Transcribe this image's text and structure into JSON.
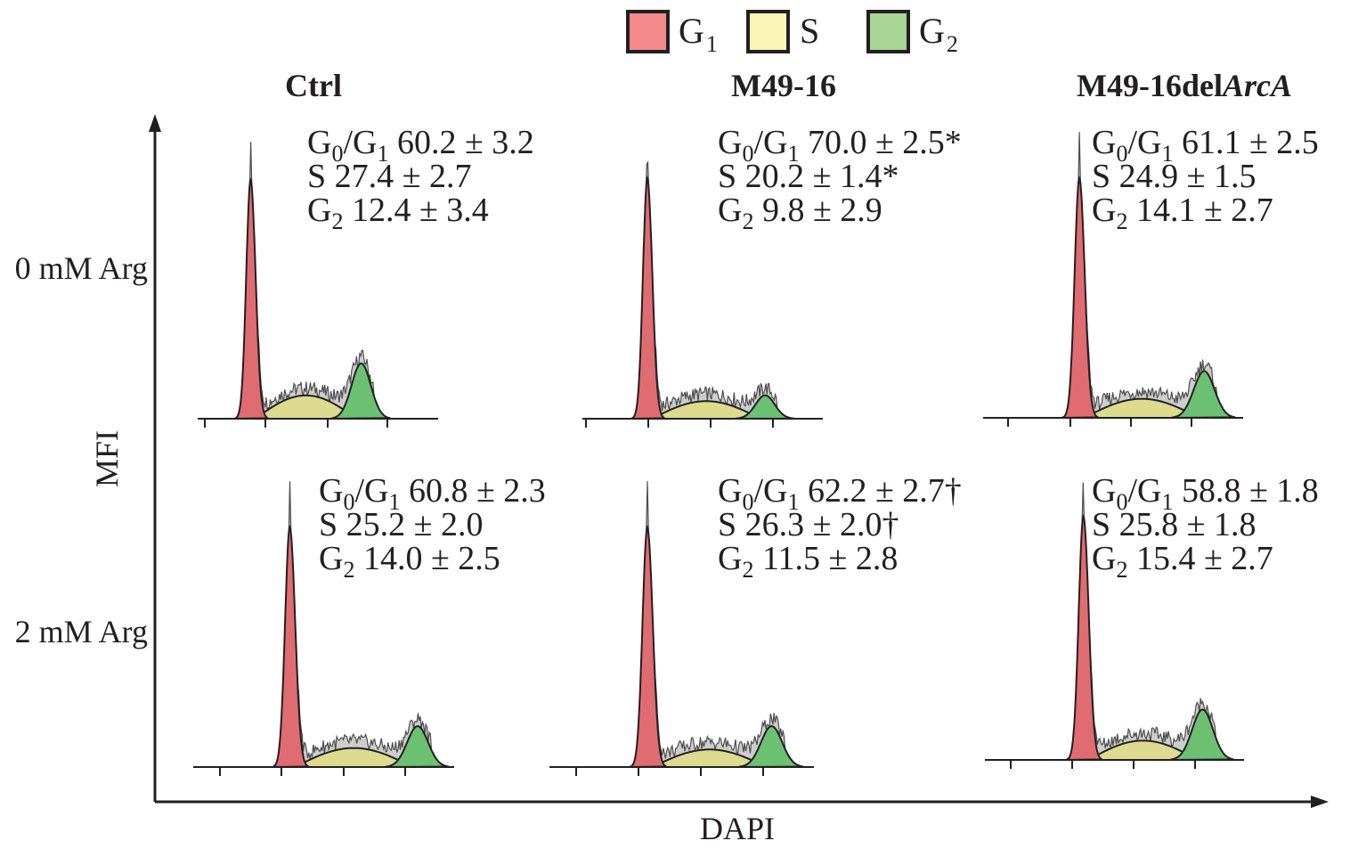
{
  "chart_data": {
    "type": "area",
    "title": "",
    "xlabel": "DAPI",
    "ylabel": "MFI",
    "legend": {
      "placement": "top-center",
      "entries": [
        {
          "name": "G",
          "sub": "1",
          "color": "#f48a8c"
        },
        {
          "name": "S",
          "sub": "",
          "color": "#f8f5b6"
        },
        {
          "name": "G",
          "sub": "2",
          "color": "#a9d596"
        }
      ]
    },
    "columns": [
      {
        "label": "Ctrl",
        "label_italic": ""
      },
      {
        "label": "M49-16",
        "label_italic": ""
      },
      {
        "label": "M49-16del",
        "label_italic": "ArcA"
      }
    ],
    "rows": [
      "0 mM Arg",
      "2 mM Arg"
    ],
    "phase_colors": {
      "G1": "#e06c72",
      "S": "#dcdb8e",
      "G2": "#6cc072",
      "overlap": "#ee8a3c",
      "raw": "#c8c8c8"
    },
    "panels": [
      {
        "row": 0,
        "col": 0,
        "g1_peak": 1.0,
        "s_height": 0.08,
        "g2_peak": 0.19,
        "g1_pos": 0.22,
        "g2_pos": 0.68,
        "stats": [
          {
            "phase": "G",
            "sub": "0",
            "phase2": "/G",
            "sub2": "1",
            "value": "60.2",
            "pm": "3.2",
            "mark": ""
          },
          {
            "phase": "S",
            "sub": "",
            "phase2": "",
            "sub2": "",
            "value": "27.4",
            "pm": "2.7",
            "mark": ""
          },
          {
            "phase": "G",
            "sub": "2",
            "phase2": "",
            "sub2": "",
            "value": "12.4",
            "pm": "3.4",
            "mark": ""
          }
        ]
      },
      {
        "row": 0,
        "col": 1,
        "g1_peak": 1.0,
        "s_height": 0.06,
        "g2_peak": 0.08,
        "g1_pos": 0.27,
        "g2_pos": 0.76,
        "stats": [
          {
            "phase": "G",
            "sub": "0",
            "phase2": "/G",
            "sub2": "1",
            "value": "70.0",
            "pm": "2.5",
            "mark": "*"
          },
          {
            "phase": "S",
            "sub": "",
            "phase2": "",
            "sub2": "",
            "value": "20.2",
            "pm": "1.4",
            "mark": "*"
          },
          {
            "phase": "G",
            "sub": "2",
            "phase2": "",
            "sub2": "",
            "value": "9.8",
            "pm": "2.9",
            "mark": ""
          }
        ]
      },
      {
        "row": 0,
        "col": 2,
        "g1_peak": 1.0,
        "s_height": 0.065,
        "g2_peak": 0.16,
        "g1_pos": 0.37,
        "g2_pos": 0.85,
        "stats": [
          {
            "phase": "G",
            "sub": "0",
            "phase2": "/G",
            "sub2": "1",
            "value": "61.1",
            "pm": "2.5",
            "mark": ""
          },
          {
            "phase": "S",
            "sub": "",
            "phase2": "",
            "sub2": "",
            "value": "24.9",
            "pm": "1.5",
            "mark": ""
          },
          {
            "phase": "G",
            "sub": "2",
            "phase2": "",
            "sub2": "",
            "value": "14.1",
            "pm": "2.7",
            "mark": ""
          }
        ]
      },
      {
        "row": 1,
        "col": 0,
        "g1_peak": 1.0,
        "s_height": 0.065,
        "g2_peak": 0.14,
        "g1_pos": 0.37,
        "g2_pos": 0.86,
        "stats": [
          {
            "phase": "G",
            "sub": "0",
            "phase2": "/G",
            "sub2": "1",
            "value": "60.8",
            "pm": "2.3",
            "mark": ""
          },
          {
            "phase": "S",
            "sub": "",
            "phase2": "",
            "sub2": "",
            "value": "25.2",
            "pm": "2.0",
            "mark": ""
          },
          {
            "phase": "G",
            "sub": "2",
            "phase2": "",
            "sub2": "",
            "value": "14.0",
            "pm": "2.5",
            "mark": ""
          }
        ]
      },
      {
        "row": 1,
        "col": 1,
        "g1_peak": 1.0,
        "s_height": 0.06,
        "g2_peak": 0.14,
        "g1_pos": 0.37,
        "g2_pos": 0.84,
        "stats": [
          {
            "phase": "G",
            "sub": "0",
            "phase2": "/G",
            "sub2": "1",
            "value": "62.2",
            "pm": "2.7",
            "mark": "†"
          },
          {
            "phase": "S",
            "sub": "",
            "phase2": "",
            "sub2": "",
            "value": "26.3",
            "pm": "2.0",
            "mark": "†"
          },
          {
            "phase": "G",
            "sub": "2",
            "phase2": "",
            "sub2": "",
            "value": "11.5",
            "pm": "2.8",
            "mark": ""
          }
        ]
      },
      {
        "row": 1,
        "col": 2,
        "g1_peak": 1.0,
        "s_height": 0.065,
        "g2_peak": 0.17,
        "g1_pos": 0.38,
        "g2_pos": 0.84,
        "stats": [
          {
            "phase": "G",
            "sub": "0",
            "phase2": "/G",
            "sub2": "1",
            "value": "58.8",
            "pm": "1.8",
            "mark": ""
          },
          {
            "phase": "S",
            "sub": "",
            "phase2": "",
            "sub2": "",
            "value": "25.8",
            "pm": "1.8",
            "mark": ""
          },
          {
            "phase": "G",
            "sub": "2",
            "phase2": "",
            "sub2": "",
            "value": "15.4",
            "pm": "2.7",
            "mark": ""
          }
        ]
      }
    ]
  }
}
